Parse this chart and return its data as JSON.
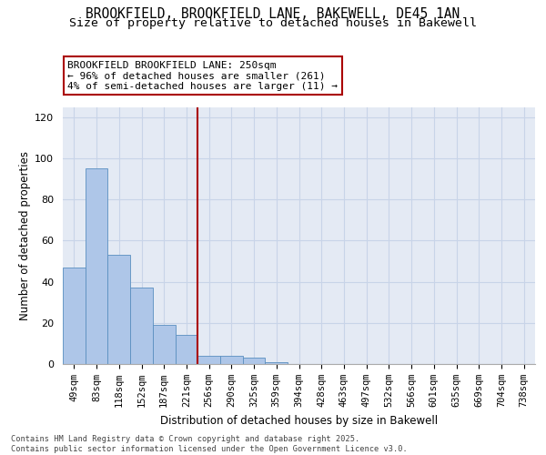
{
  "title_line1": "BROOKFIELD, BROOKFIELD LANE, BAKEWELL, DE45 1AN",
  "title_line2": "Size of property relative to detached houses in Bakewell",
  "xlabel": "Distribution of detached houses by size in Bakewell",
  "ylabel": "Number of detached properties",
  "bar_labels": [
    "49sqm",
    "83sqm",
    "118sqm",
    "152sqm",
    "187sqm",
    "221sqm",
    "256sqm",
    "290sqm",
    "325sqm",
    "359sqm",
    "394sqm",
    "428sqm",
    "463sqm",
    "497sqm",
    "532sqm",
    "566sqm",
    "601sqm",
    "635sqm",
    "669sqm",
    "704sqm",
    "738sqm"
  ],
  "bar_values": [
    47,
    95,
    53,
    37,
    19,
    14,
    4,
    4,
    3,
    1,
    0,
    0,
    0,
    0,
    0,
    0,
    0,
    0,
    0,
    0,
    0
  ],
  "bar_color": "#aec6e8",
  "bar_edge_color": "#5a8fc0",
  "vline_index": 5.5,
  "vline_color": "#aa0000",
  "annotation_text": "BROOKFIELD BROOKFIELD LANE: 250sqm\n← 96% of detached houses are smaller (261)\n4% of semi-detached houses are larger (11) →",
  "annotation_box_facecolor": "#ffffff",
  "annotation_box_edgecolor": "#aa0000",
  "ylim_max": 125,
  "yticks": [
    0,
    20,
    40,
    60,
    80,
    100,
    120
  ],
  "grid_color": "#c8d4e8",
  "plot_bg_color": "#e4eaf4",
  "footnote": "Contains HM Land Registry data © Crown copyright and database right 2025.\nContains public sector information licensed under the Open Government Licence v3.0."
}
